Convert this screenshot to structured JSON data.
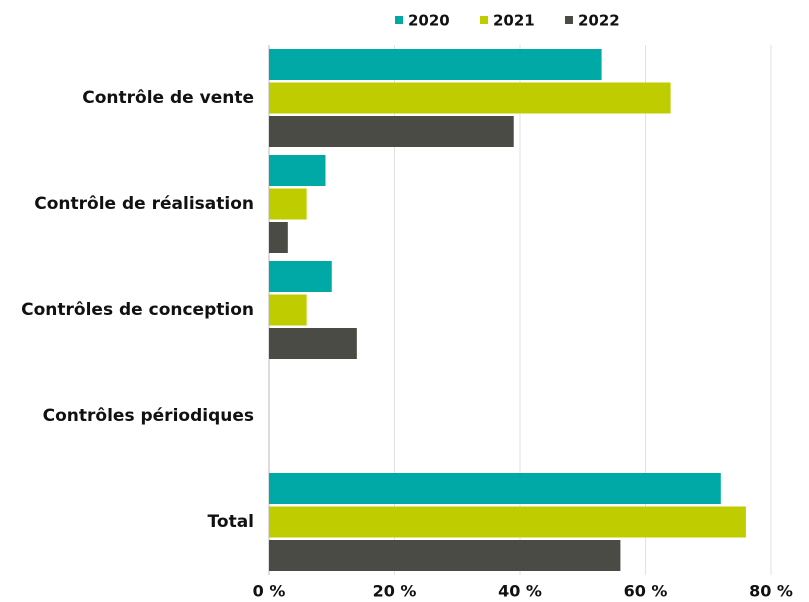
{
  "chart_data": {
    "type": "hbar",
    "categories": [
      "Contrôle de vente",
      "Contrôle de réalisation",
      "Contrôles de conception",
      "Contrôles périodiques",
      "Total"
    ],
    "series": [
      {
        "name": "2020",
        "color": "#00a9a5",
        "values": [
          53,
          9,
          10,
          0,
          72
        ]
      },
      {
        "name": "2021",
        "color": "#bfcc00",
        "values": [
          64,
          6,
          6,
          0,
          76
        ]
      },
      {
        "name": "2022",
        "color": "#4a4b45",
        "values": [
          39,
          3,
          14,
          0,
          56
        ]
      }
    ],
    "xlim": [
      0,
      80
    ],
    "xticks": [
      {
        "value": 0,
        "label": "0 %"
      },
      {
        "value": 20,
        "label": "20 %"
      },
      {
        "value": 40,
        "label": "40 %"
      },
      {
        "value": 60,
        "label": "60 %"
      },
      {
        "value": 80,
        "label": "80 %"
      }
    ],
    "grid": true,
    "legend": "top"
  }
}
